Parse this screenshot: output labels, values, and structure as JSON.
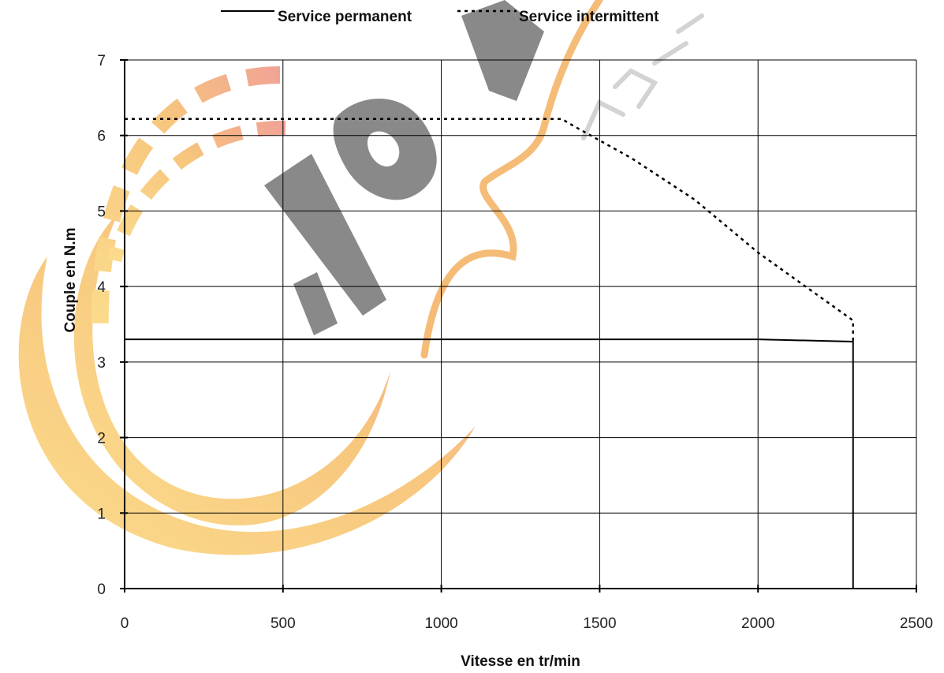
{
  "chart_data": {
    "type": "line",
    "title": "",
    "xlabel": "Vitesse en tr/min",
    "ylabel": "Couple en N.m",
    "xlim": [
      0,
      2500
    ],
    "ylim": [
      0,
      7
    ],
    "x_ticks": [
      0,
      500,
      1000,
      1500,
      2000,
      2500
    ],
    "y_ticks": [
      0,
      1,
      2,
      3,
      4,
      5,
      6,
      7
    ],
    "grid": true,
    "legend_position": "top",
    "series": [
      {
        "name": "Service permanent",
        "style": "solid",
        "color": "#000000",
        "points": [
          [
            0,
            3.3
          ],
          [
            2000,
            3.3
          ],
          [
            2300,
            3.27
          ],
          [
            2300,
            0
          ]
        ]
      },
      {
        "name": "Service intermittent",
        "style": "dotted",
        "color": "#000000",
        "points": [
          [
            0,
            6.22
          ],
          [
            1380,
            6.22
          ],
          [
            1420,
            6.12
          ],
          [
            1600,
            5.7
          ],
          [
            1800,
            5.15
          ],
          [
            2000,
            4.45
          ],
          [
            2200,
            3.85
          ],
          [
            2300,
            3.55
          ],
          [
            2300,
            3.27
          ]
        ]
      }
    ]
  },
  "watermark": {
    "text": "motor alpha",
    "colors": [
      "#7d7d7d",
      "#f7b766",
      "#f3a08a",
      "#fbd880"
    ]
  }
}
